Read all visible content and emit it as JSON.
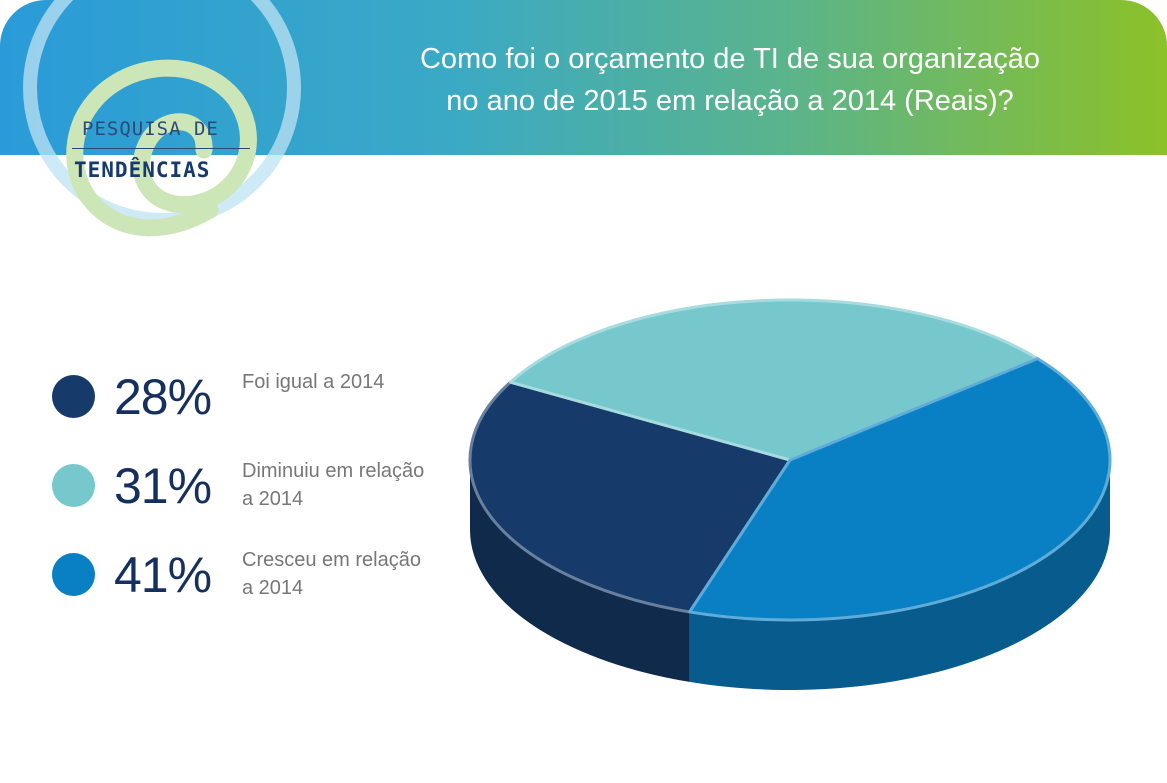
{
  "header": {
    "title_line1": "Como foi o orçamento de TI de sua organização",
    "title_line2": "no ano de 2015 em relação a 2014 (Reais)?"
  },
  "logo": {
    "line1": "PESQUISA DE",
    "line2": "TENDÊNCIAS"
  },
  "colors": {
    "header_gradient": [
      "#2a9bd8",
      "#8cc128"
    ],
    "value_text": "#152f5e",
    "label_text": "#777777"
  },
  "legend": [
    {
      "value": "28%",
      "label": "Foi igual a 2014",
      "color": "#163a6a"
    },
    {
      "value": "31%",
      "label": "Diminuiu em relação a 2014",
      "color": "#76c8cd"
    },
    {
      "value": "41%",
      "label": "Cresceu em relação a 2014",
      "color": "#0a80c4"
    }
  ],
  "chart_data": {
    "type": "pie",
    "style": "3d",
    "title": "Como foi o orçamento de TI de sua organização no ano de 2015 em relação a 2014 (Reais)?",
    "categories": [
      "Foi igual a 2014",
      "Diminuiu em relação a 2014",
      "Cresceu em relação a 2014"
    ],
    "values": [
      28,
      31,
      41
    ],
    "unit": "%",
    "colors": [
      "#163a6a",
      "#76c8cd",
      "#0a80c4"
    ],
    "legend_position": "left"
  }
}
